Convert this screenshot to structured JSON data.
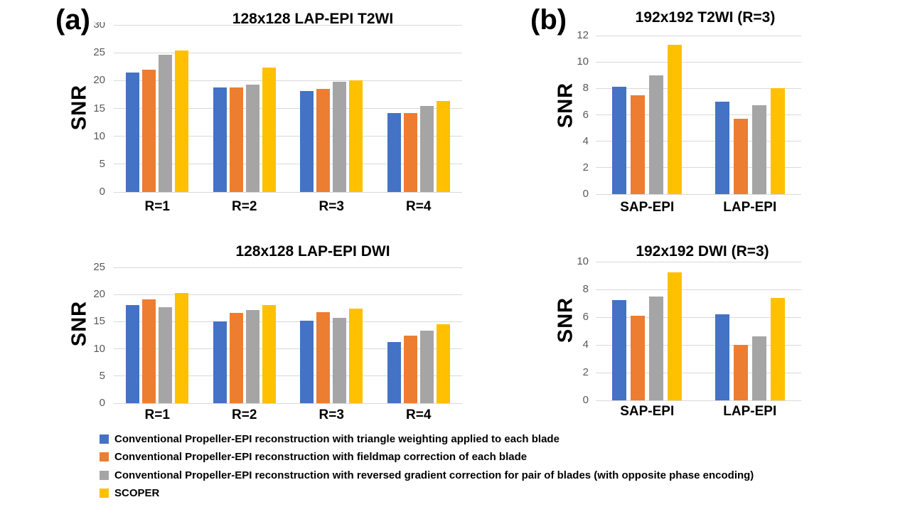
{
  "panels": {
    "a": "(a)",
    "b": "(b)"
  },
  "colors": {
    "series": [
      "#4472C4",
      "#ED7D31",
      "#A5A5A5",
      "#FFC000"
    ],
    "gridline": "#D9D9D9",
    "tick_label": "#595959",
    "text": "#000000",
    "background": "#FFFFFF"
  },
  "legend": {
    "position": "bottom-left",
    "items": [
      {
        "label": "Conventional Propeller-EPI reconstruction with triangle weighting applied to each blade",
        "color": "#4472C4"
      },
      {
        "label": "Conventional Propeller-EPI reconstruction with fieldmap correction of each blade",
        "color": "#ED7D31"
      },
      {
        "label": "Conventional Propeller-EPI reconstruction with reversed gradient correction for pair of blades (with opposite phase encoding)",
        "color": "#A5A5A5"
      },
      {
        "label": "SCOPER",
        "color": "#FFC000"
      }
    ]
  },
  "chart_data": [
    {
      "id": "lap_epi_t2wi_128",
      "panel": "a",
      "type": "bar",
      "title": "128x128 LAP-EPI T2WI",
      "ylabel": "SNR",
      "xlabel": "",
      "categories": [
        "R=1",
        "R=2",
        "R=3",
        "R=4"
      ],
      "series": [
        {
          "name": "Conventional Propeller-EPI reconstruction with triangle weighting applied to each blade",
          "values": [
            21.5,
            18.8,
            18.1,
            14.2
          ]
        },
        {
          "name": "Conventional Propeller-EPI reconstruction with fieldmap correction of each blade",
          "values": [
            22.0,
            18.8,
            18.5,
            14.2
          ]
        },
        {
          "name": "Conventional Propeller-EPI reconstruction with reversed gradient correction for pair of blades (with opposite phase encoding)",
          "values": [
            24.6,
            19.3,
            19.8,
            15.4
          ]
        },
        {
          "name": "SCOPER",
          "values": [
            25.4,
            22.4,
            20.0,
            16.3
          ]
        }
      ],
      "ylim": [
        0,
        30
      ],
      "ytick_step": 5,
      "grid": true,
      "top_tick_clipped": true
    },
    {
      "id": "lap_epi_dwi_128",
      "panel": "a",
      "type": "bar",
      "title": "128x128 LAP-EPI DWI",
      "ylabel": "SNR",
      "xlabel": "",
      "categories": [
        "R=1",
        "R=2",
        "R=3",
        "R=4"
      ],
      "series": [
        {
          "name": "Conventional Propeller-EPI reconstruction with triangle weighting applied to each blade",
          "values": [
            18.0,
            15.0,
            15.2,
            11.2
          ]
        },
        {
          "name": "Conventional Propeller-EPI reconstruction with fieldmap correction of each blade",
          "values": [
            19.1,
            16.6,
            16.7,
            12.4
          ]
        },
        {
          "name": "Conventional Propeller-EPI reconstruction with reversed gradient correction for pair of blades (with opposite phase encoding)",
          "values": [
            17.7,
            17.1,
            15.7,
            13.4
          ]
        },
        {
          "name": "SCOPER",
          "values": [
            20.3,
            18.0,
            17.4,
            14.5
          ]
        }
      ],
      "ylim": [
        0,
        25
      ],
      "ytick_step": 5,
      "grid": true,
      "top_tick_clipped": false
    },
    {
      "id": "t2wi_192",
      "panel": "b",
      "type": "bar",
      "title": "192x192 T2WI (R=3)",
      "ylabel": "SNR",
      "xlabel": "",
      "categories": [
        "SAP-EPI",
        "LAP-EPI"
      ],
      "series": [
        {
          "name": "Conventional Propeller-EPI reconstruction with triangle weighting applied to each blade",
          "values": [
            8.1,
            7.0
          ]
        },
        {
          "name": "Conventional Propeller-EPI reconstruction with fieldmap correction of each blade",
          "values": [
            7.5,
            5.7
          ]
        },
        {
          "name": "Conventional Propeller-EPI reconstruction with reversed gradient correction for pair of blades (with opposite phase encoding)",
          "values": [
            9.0,
            6.7
          ]
        },
        {
          "name": "SCOPER",
          "values": [
            11.3,
            8.0
          ]
        }
      ],
      "ylim": [
        0,
        12
      ],
      "ytick_step": 2,
      "grid": true,
      "top_tick_clipped": false
    },
    {
      "id": "dwi_192",
      "panel": "b",
      "type": "bar",
      "title": "192x192 DWI (R=3)",
      "ylabel": "SNR",
      "xlabel": "",
      "categories": [
        "SAP-EPI",
        "LAP-EPI"
      ],
      "series": [
        {
          "name": "Conventional Propeller-EPI reconstruction with triangle weighting applied to each blade",
          "values": [
            7.25,
            6.2
          ]
        },
        {
          "name": "Conventional Propeller-EPI reconstruction with fieldmap correction of each blade",
          "values": [
            6.1,
            4.0
          ]
        },
        {
          "name": "Conventional Propeller-EPI reconstruction with reversed gradient correction for pair of blades (with opposite phase encoding)",
          "values": [
            7.5,
            4.6
          ]
        },
        {
          "name": "SCOPER",
          "values": [
            9.25,
            7.4
          ]
        }
      ],
      "ylim": [
        0,
        10
      ],
      "ytick_step": 2,
      "grid": true,
      "top_tick_clipped": false
    }
  ]
}
